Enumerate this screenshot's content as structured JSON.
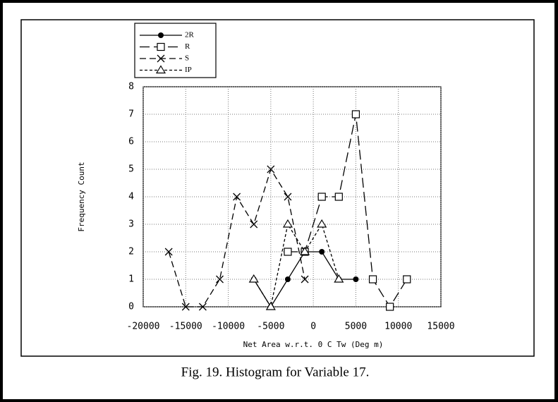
{
  "chart_data": {
    "type": "line",
    "caption": "Fig. 19.  Histogram for Variable 17.",
    "x_label": "Net Area w.r.t. 0 C Tw (Deg m)",
    "y_label": "Frequency Count",
    "xlim": [
      -20000,
      15000
    ],
    "xticks": [
      -20000,
      -15000,
      -10000,
      -5000,
      0,
      5000,
      10000,
      15000
    ],
    "ylim": [
      0,
      8
    ],
    "yticks": [
      0,
      1,
      2,
      3,
      4,
      5,
      6,
      7,
      8
    ],
    "grid": true,
    "legend": "top-left",
    "series": [
      {
        "name": "2R",
        "color": "#000000",
        "line_style": "solid",
        "marker": "filled-circle",
        "x": [
          -7000,
          -5000,
          -3000,
          -1000,
          1000,
          3000,
          5000
        ],
        "values": [
          1,
          0,
          1,
          2,
          2,
          1,
          1
        ]
      },
      {
        "name": "R",
        "color": "#000000",
        "line_style": "long-dash",
        "marker": "square",
        "x": [
          -3000,
          -1000,
          1000,
          3000,
          5000,
          7000,
          9000,
          11000
        ],
        "values": [
          2,
          2,
          4,
          4,
          7,
          1,
          0,
          1
        ]
      },
      {
        "name": "S",
        "color": "#000000",
        "line_style": "dash",
        "marker": "cross",
        "x": [
          -17000,
          -15000,
          -13000,
          -11000,
          -9000,
          -7000,
          -5000,
          -3000,
          -1000
        ],
        "values": [
          2,
          0,
          0,
          1,
          4,
          3,
          5,
          4,
          1
        ]
      },
      {
        "name": "IP",
        "color": "#000000",
        "line_style": "short-dash",
        "marker": "triangle",
        "x": [
          -7000,
          -5000,
          -3000,
          -1000,
          1000,
          3000
        ],
        "values": [
          1,
          0,
          3,
          2,
          3,
          1
        ]
      }
    ]
  }
}
